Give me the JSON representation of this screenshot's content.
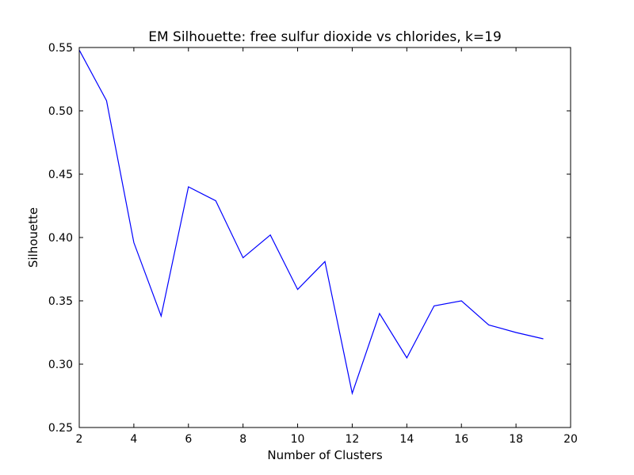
{
  "chart_data": {
    "type": "line",
    "title": "EM Silhouette: free sulfur dioxide vs chlorides, k=19",
    "xlabel": "Number of Clusters",
    "ylabel": "Silhouette",
    "xlim": [
      2,
      20
    ],
    "ylim": [
      0.25,
      0.55
    ],
    "xticks": [
      2,
      4,
      6,
      8,
      10,
      12,
      14,
      16,
      18,
      20
    ],
    "yticks": [
      0.25,
      0.3,
      0.35,
      0.4,
      0.45,
      0.5,
      0.55
    ],
    "xtick_labels": [
      "2",
      "4",
      "6",
      "8",
      "10",
      "12",
      "14",
      "16",
      "18",
      "20"
    ],
    "ytick_labels": [
      "0.25",
      "0.30",
      "0.35",
      "0.40",
      "0.45",
      "0.50",
      "0.55"
    ],
    "grid": false,
    "series": [
      {
        "color": "#0000ff",
        "x": [
          2,
          3,
          4,
          5,
          6,
          7,
          8,
          9,
          10,
          11,
          12,
          13,
          14,
          15,
          16,
          17,
          18,
          19
        ],
        "y": [
          0.548,
          0.508,
          0.396,
          0.338,
          0.44,
          0.429,
          0.384,
          0.402,
          0.359,
          0.381,
          0.277,
          0.34,
          0.305,
          0.346,
          0.35,
          0.331,
          0.325,
          0.32
        ]
      }
    ]
  }
}
